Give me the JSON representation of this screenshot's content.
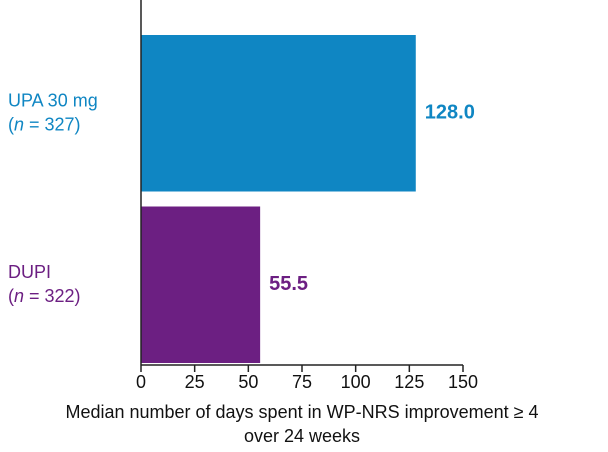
{
  "chart_data": {
    "type": "bar",
    "orientation": "horizontal",
    "categories": [
      "UPA 30 mg (n = 327)",
      "DUPI (n = 322)"
    ],
    "values": [
      128,
      55.5
    ],
    "value_labels": [
      "128.0",
      "55.5"
    ],
    "colors": [
      "#0f86c3",
      "#6c1f82"
    ],
    "xlim": [
      0,
      150
    ],
    "xticks": [
      0,
      25,
      50,
      75,
      100,
      125,
      150
    ],
    "x_label": [
      "Median number of days spent in WP-NRS improvement ≥ 4",
      "over 24 weeks"
    ]
  }
}
